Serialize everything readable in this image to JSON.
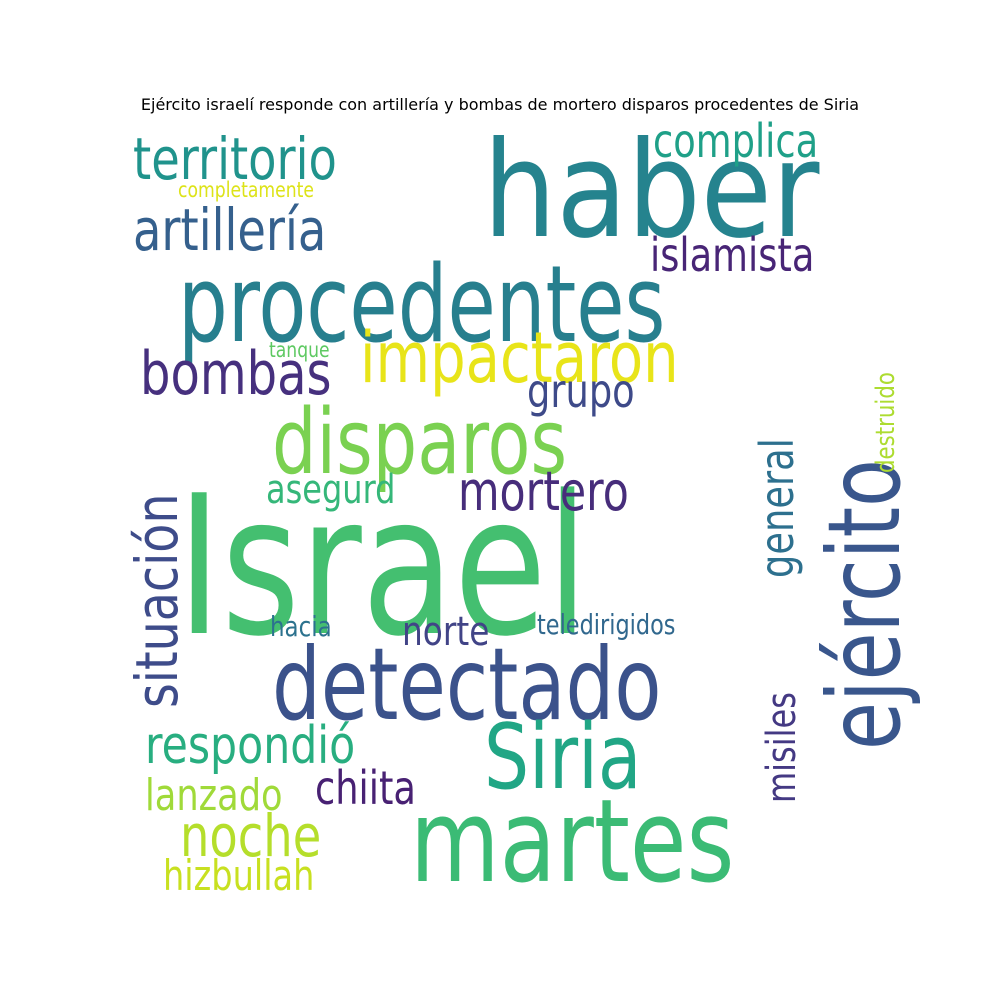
{
  "title": "Ejército israelí responde con artillería y bombas de mortero disparos procedentes de Siria",
  "words": [
    {
      "text": "Israel",
      "color": "#44bf70",
      "orientation": "horizontal"
    },
    {
      "text": "haber",
      "color": "#25838e",
      "orientation": "horizontal"
    },
    {
      "text": "procedentes",
      "color": "#277f8e",
      "orientation": "horizontal"
    },
    {
      "text": "ejército",
      "color": "#39568c",
      "orientation": "vertical"
    },
    {
      "text": "martes",
      "color": "#3bbb75",
      "orientation": "horizontal"
    },
    {
      "text": "detectado",
      "color": "#3b528b",
      "orientation": "horizontal"
    },
    {
      "text": "disparos",
      "color": "#7ad151",
      "orientation": "horizontal"
    },
    {
      "text": "Siria",
      "color": "#21a685",
      "orientation": "horizontal"
    },
    {
      "text": "impactaron",
      "color": "#e8e419",
      "orientation": "horizontal"
    },
    {
      "text": "territorio",
      "color": "#20938c",
      "orientation": "horizontal"
    },
    {
      "text": "artillería",
      "color": "#35608d",
      "orientation": "horizontal"
    },
    {
      "text": "situación",
      "color": "#3e4c8a",
      "orientation": "vertical"
    },
    {
      "text": "bombas",
      "color": "#46307e",
      "orientation": "horizontal"
    },
    {
      "text": "mortero",
      "color": "#472d7b",
      "orientation": "horizontal"
    },
    {
      "text": "respondió",
      "color": "#28ae80",
      "orientation": "horizontal"
    },
    {
      "text": "noche",
      "color": "#b5de2b",
      "orientation": "horizontal"
    },
    {
      "text": "complica",
      "color": "#1fa088",
      "orientation": "horizontal"
    },
    {
      "text": "islamista",
      "color": "#482576",
      "orientation": "horizontal"
    },
    {
      "text": "grupo",
      "color": "#3e4a89",
      "orientation": "horizontal"
    },
    {
      "text": "general",
      "color": "#2d708e",
      "orientation": "vertical"
    },
    {
      "text": "asegurd",
      "color": "#35b779",
      "orientation": "horizontal"
    },
    {
      "text": "norte",
      "color": "#414487",
      "orientation": "horizontal"
    },
    {
      "text": "chiita",
      "color": "#482173",
      "orientation": "horizontal"
    },
    {
      "text": "lanzado",
      "color": "#a0da39",
      "orientation": "horizontal"
    },
    {
      "text": "hizbullah",
      "color": "#c8e020",
      "orientation": "horizontal"
    },
    {
      "text": "misiles",
      "color": "#443983",
      "orientation": "vertical"
    },
    {
      "text": "hacia",
      "color": "#2c728e",
      "orientation": "horizontal"
    },
    {
      "text": "teledirigidos",
      "color": "#31688e",
      "orientation": "horizontal"
    },
    {
      "text": "destruido",
      "color": "#addc30",
      "orientation": "vertical"
    },
    {
      "text": "tanque",
      "color": "#5ec962",
      "orientation": "horizontal"
    },
    {
      "text": "completamente",
      "color": "#dde318",
      "orientation": "horizontal"
    }
  ]
}
